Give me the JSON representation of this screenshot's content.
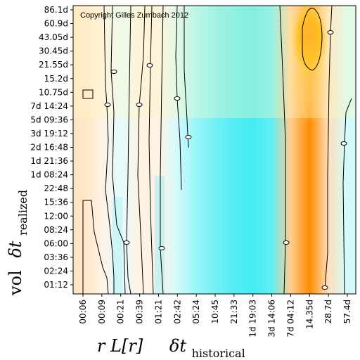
{
  "chart_data": {
    "type": "heatmap",
    "title": "",
    "copyright": "Copyright Gilles Zumbach 2012",
    "xlabel": {
      "prefix": "r L[r]",
      "symbol": "δt",
      "subscript": "historical"
    },
    "ylabel": {
      "prefix": "vol",
      "symbol": "δt",
      "subscript": "realized"
    },
    "x_ticks": [
      "00:06",
      "00:09",
      "00:21",
      "00:39",
      "01:21",
      "02:42",
      "05:24",
      "10:45",
      "21:33",
      "1d 19:03",
      "3d 14:06",
      "7d 04:12",
      "14.35d",
      "28.7d",
      "57.4d"
    ],
    "y_ticks": [
      "86.1d",
      "60.9d",
      "43.05d",
      "30.45d",
      "21.55d",
      "15.2d",
      "10.75d",
      "7d 14:24",
      "5d 09:36",
      "3d 19:12",
      "2d 16:48",
      "1d 21:36",
      "1d 08:24",
      "22:48",
      "15:36",
      "12:00",
      "08:24",
      "06:00",
      "03:36",
      "02:24",
      "01:12"
    ],
    "color_scale": {
      "negative": "#00e5ef",
      "zero": "#ffffff",
      "positive": "#ff8c00"
    },
    "grid": false,
    "legend": "none",
    "contours": "zero-level",
    "x_columns": [
      {
        "x": "00:06",
        "v": 0.1
      },
      {
        "x": "00:09",
        "v": 0.05
      },
      {
        "x": "00:21",
        "v": -0.05
      },
      {
        "x": "00:39",
        "v": 0.05
      },
      {
        "x": "01:21",
        "v": 0.05
      },
      {
        "x": "02:42",
        "v": -0.08
      },
      {
        "x": "05:24",
        "v": -0.18
      },
      {
        "x": "10:45",
        "v": -0.25
      },
      {
        "x": "21:33",
        "v": -0.3
      },
      {
        "x": "1d 19:03",
        "v": -0.33
      },
      {
        "x": "3d 14:06",
        "v": -0.28
      },
      {
        "x": "7d 04:12",
        "v": 0.2
      },
      {
        "x": "14.35d",
        "v": 0.45
      },
      {
        "x": "28.7d",
        "v": 0.12
      },
      {
        "x": "57.4d",
        "v": -0.08
      }
    ]
  }
}
